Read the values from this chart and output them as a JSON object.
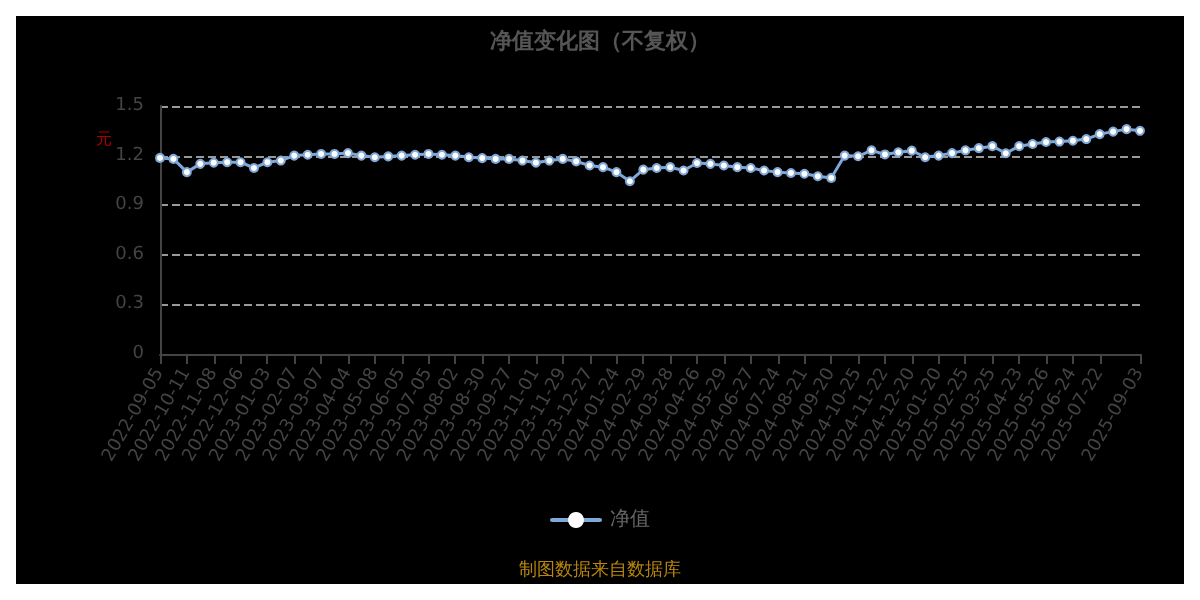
{
  "chart_data": {
    "type": "line",
    "title": "净值变化图（不复权）",
    "ylabel": "元",
    "categories": [
      "2022-09-05",
      null,
      "2022-10-11",
      null,
      "2022-11-08",
      null,
      "2022-12-06",
      null,
      "2023-01-03",
      null,
      "2023-02-07",
      null,
      "2023-03-07",
      null,
      "2023-04-04",
      null,
      "2023-05-08",
      null,
      "2023-06-05",
      null,
      "2023-07-05",
      null,
      "2023-08-02",
      null,
      "2023-08-30",
      null,
      "2023-09-27",
      null,
      "2023-11-01",
      null,
      "2023-11-29",
      null,
      "2023-12-27",
      null,
      "2024-01-24",
      null,
      "2024-02-29",
      null,
      "2024-03-28",
      null,
      "2024-04-26",
      null,
      "2024-05-29",
      null,
      "2024-06-27",
      null,
      "2024-07-24",
      null,
      "2024-08-21",
      null,
      "2024-09-20",
      null,
      "2024-10-25",
      null,
      "2024-11-22",
      null,
      "2024-12-20",
      null,
      "2025-01-20",
      null,
      "2025-02-25",
      null,
      "2025-03-25",
      null,
      "2025-04-23",
      null,
      "2025-05-26",
      null,
      "2025-06-24",
      null,
      "2025-07-22",
      null,
      null,
      "2025-09-03"
    ],
    "series": [
      {
        "name": "净值",
        "color": "#7fa8d8",
        "values": [
          1.186,
          1.18,
          1.1,
          1.15,
          1.157,
          1.16,
          1.16,
          1.125,
          1.16,
          1.17,
          1.2,
          1.205,
          1.21,
          1.21,
          1.215,
          1.2,
          1.19,
          1.195,
          1.2,
          1.205,
          1.21,
          1.205,
          1.2,
          1.19,
          1.185,
          1.18,
          1.18,
          1.17,
          1.157,
          1.17,
          1.18,
          1.165,
          1.14,
          1.13,
          1.1,
          1.045,
          1.115,
          1.125,
          1.13,
          1.11,
          1.155,
          1.15,
          1.14,
          1.13,
          1.125,
          1.11,
          1.1,
          1.095,
          1.09,
          1.075,
          1.065,
          1.2,
          1.196,
          1.232,
          1.207,
          1.22,
          1.23,
          1.19,
          1.2,
          1.215,
          1.232,
          1.245,
          1.257,
          1.214,
          1.257,
          1.27,
          1.282,
          1.285,
          1.29,
          1.3,
          1.33,
          1.345,
          1.36,
          1.35
        ]
      }
    ],
    "ylim": [
      0,
      1.5
    ],
    "yticks": [
      0,
      0.3,
      0.6,
      0.9,
      1.2,
      1.5
    ],
    "grid": "y",
    "legend": "bottom",
    "marker": "circle",
    "line_style": "solid",
    "annotations": [
      "制图数据来自数据库"
    ]
  }
}
